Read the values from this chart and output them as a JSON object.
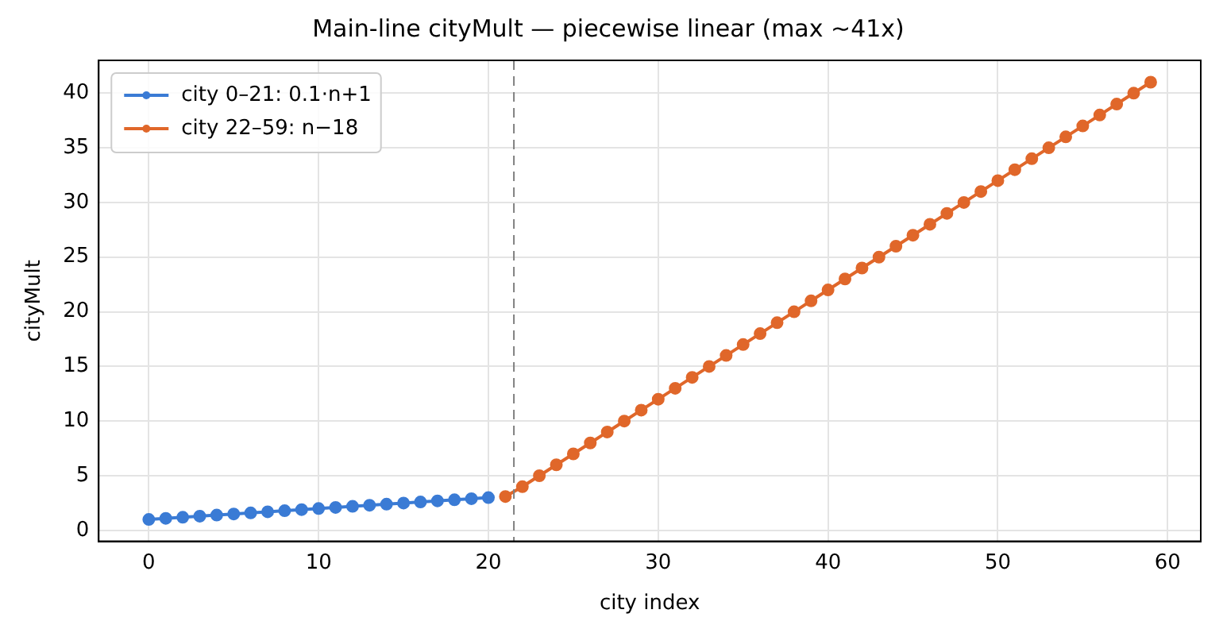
{
  "chart_data": {
    "type": "line",
    "title": "Main-line cityMult — piecewise linear (max ~41x)",
    "xlabel": "city index",
    "ylabel": "cityMult",
    "series": [
      {
        "name": "city 0–21: 0.1·n+1",
        "color": "#3a7bd5",
        "x": [
          0,
          1,
          2,
          3,
          4,
          5,
          6,
          7,
          8,
          9,
          10,
          11,
          12,
          13,
          14,
          15,
          16,
          17,
          18,
          19,
          20
        ],
        "values": [
          1.0,
          1.1,
          1.2,
          1.3,
          1.4,
          1.5,
          1.6,
          1.7,
          1.8,
          1.9,
          2.0,
          2.1,
          2.2,
          2.3,
          2.4,
          2.5,
          2.6,
          2.7,
          2.8,
          2.9,
          3.0
        ]
      },
      {
        "name": "city 22–59: n−18",
        "color": "#e0672a",
        "x": [
          21,
          22,
          23,
          24,
          25,
          26,
          27,
          28,
          29,
          30,
          31,
          32,
          33,
          34,
          35,
          36,
          37,
          38,
          39,
          40,
          41,
          42,
          43,
          44,
          45,
          46,
          47,
          48,
          49,
          50,
          51,
          52,
          53,
          54,
          55,
          56,
          57,
          58,
          59
        ],
        "values": [
          3.1,
          4,
          5,
          6,
          7,
          8,
          9,
          10,
          11,
          12,
          13,
          14,
          15,
          16,
          17,
          18,
          19,
          20,
          21,
          22,
          23,
          24,
          25,
          26,
          27,
          28,
          29,
          30,
          31,
          32,
          33,
          34,
          35,
          36,
          37,
          38,
          39,
          40,
          41
        ]
      }
    ],
    "xlim": [
      -2.95,
      61.95
    ],
    "xticks": [
      0,
      10,
      20,
      30,
      40,
      50,
      60
    ],
    "ylim": [
      -1,
      43
    ],
    "yticks": [
      0,
      5,
      10,
      15,
      20,
      25,
      30,
      35,
      40
    ],
    "ref_lines": [
      {
        "axis": "x",
        "value": 21.5,
        "color": "#808080",
        "line_style": "dashed"
      }
    ],
    "grid": true,
    "legend": "top left",
    "marker": "circle",
    "line_style": "solid"
  }
}
